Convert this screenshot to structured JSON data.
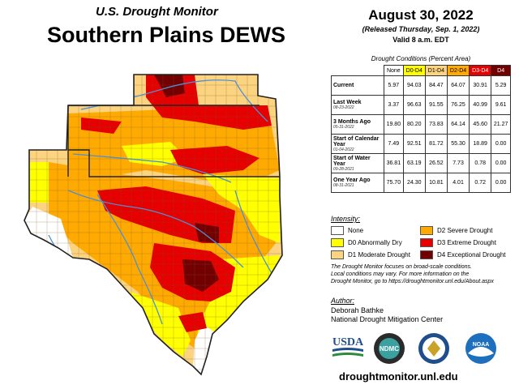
{
  "header": {
    "subtitle": "U.S. Drought Monitor",
    "title": "Southern Plains DEWS"
  },
  "date_block": {
    "date": "August 30, 2022",
    "released": "(Released Thursday, Sep. 1, 2022)",
    "valid": "Valid 8 a.m. EDT"
  },
  "table": {
    "caption": "Drought Conditions (Percent Area)",
    "columns": [
      "None",
      "D0-D4",
      "D1-D4",
      "D2-D4",
      "D3-D4",
      "D4"
    ],
    "column_colors": [
      "#ffffff",
      "#ffff00",
      "#fcd37f",
      "#ffaa00",
      "#e60000",
      "#730000"
    ],
    "rows": [
      {
        "label": "Current",
        "date": "",
        "values": [
          "5.97",
          "94.03",
          "84.47",
          "64.07",
          "30.91",
          "5.29"
        ]
      },
      {
        "label": "Last Week",
        "date": "08-23-2022",
        "values": [
          "3.37",
          "96.63",
          "91.55",
          "76.25",
          "40.99",
          "9.61"
        ]
      },
      {
        "label": "3 Months Ago",
        "date": "05-31-2022",
        "values": [
          "19.80",
          "80.20",
          "73.83",
          "64.14",
          "45.60",
          "21.27"
        ]
      },
      {
        "label": "Start of Calendar Year",
        "date": "01-04-2022",
        "values": [
          "7.49",
          "92.51",
          "81.72",
          "55.30",
          "18.89",
          "0.00"
        ]
      },
      {
        "label": "Start of Water Year",
        "date": "09-28-2021",
        "values": [
          "36.81",
          "63.19",
          "26.52",
          "7.73",
          "0.78",
          "0.00"
        ]
      },
      {
        "label": "One Year Ago",
        "date": "08-31-2021",
        "values": [
          "75.70",
          "24.30",
          "10.81",
          "4.01",
          "0.72",
          "0.00"
        ]
      }
    ]
  },
  "legend": {
    "title": "Intensity:",
    "items": [
      {
        "label": "None",
        "color": "#ffffff"
      },
      {
        "label": "D0 Abnormally Dry",
        "color": "#ffff00"
      },
      {
        "label": "D1 Moderate Drought",
        "color": "#fcd37f"
      },
      {
        "label": "D2 Severe Drought",
        "color": "#ffaa00"
      },
      {
        "label": "D3 Extreme Drought",
        "color": "#e60000"
      },
      {
        "label": "D4 Exceptional Drought",
        "color": "#730000"
      }
    ]
  },
  "note": {
    "line1": "The Drought Monitor focuses on broad-scale conditions.",
    "line2": "Local conditions may vary. For more information on the",
    "line3": "Drought Monitor, go to https://droughtmonitor.unl.edu/About.aspx"
  },
  "author": {
    "title": "Author:",
    "name": "Deborah Bathke",
    "org": "National Drought Mitigation Center"
  },
  "logos": {
    "usda": "USDA",
    "ndmc": "NDMC",
    "noaa": "NOAA"
  },
  "url": "droughtmonitor.unl.edu",
  "map": {
    "region": "Southern Plains",
    "categories_shown": [
      "None",
      "D0",
      "D1",
      "D2",
      "D3",
      "D4"
    ],
    "rivers_color": "#4a90d9"
  }
}
